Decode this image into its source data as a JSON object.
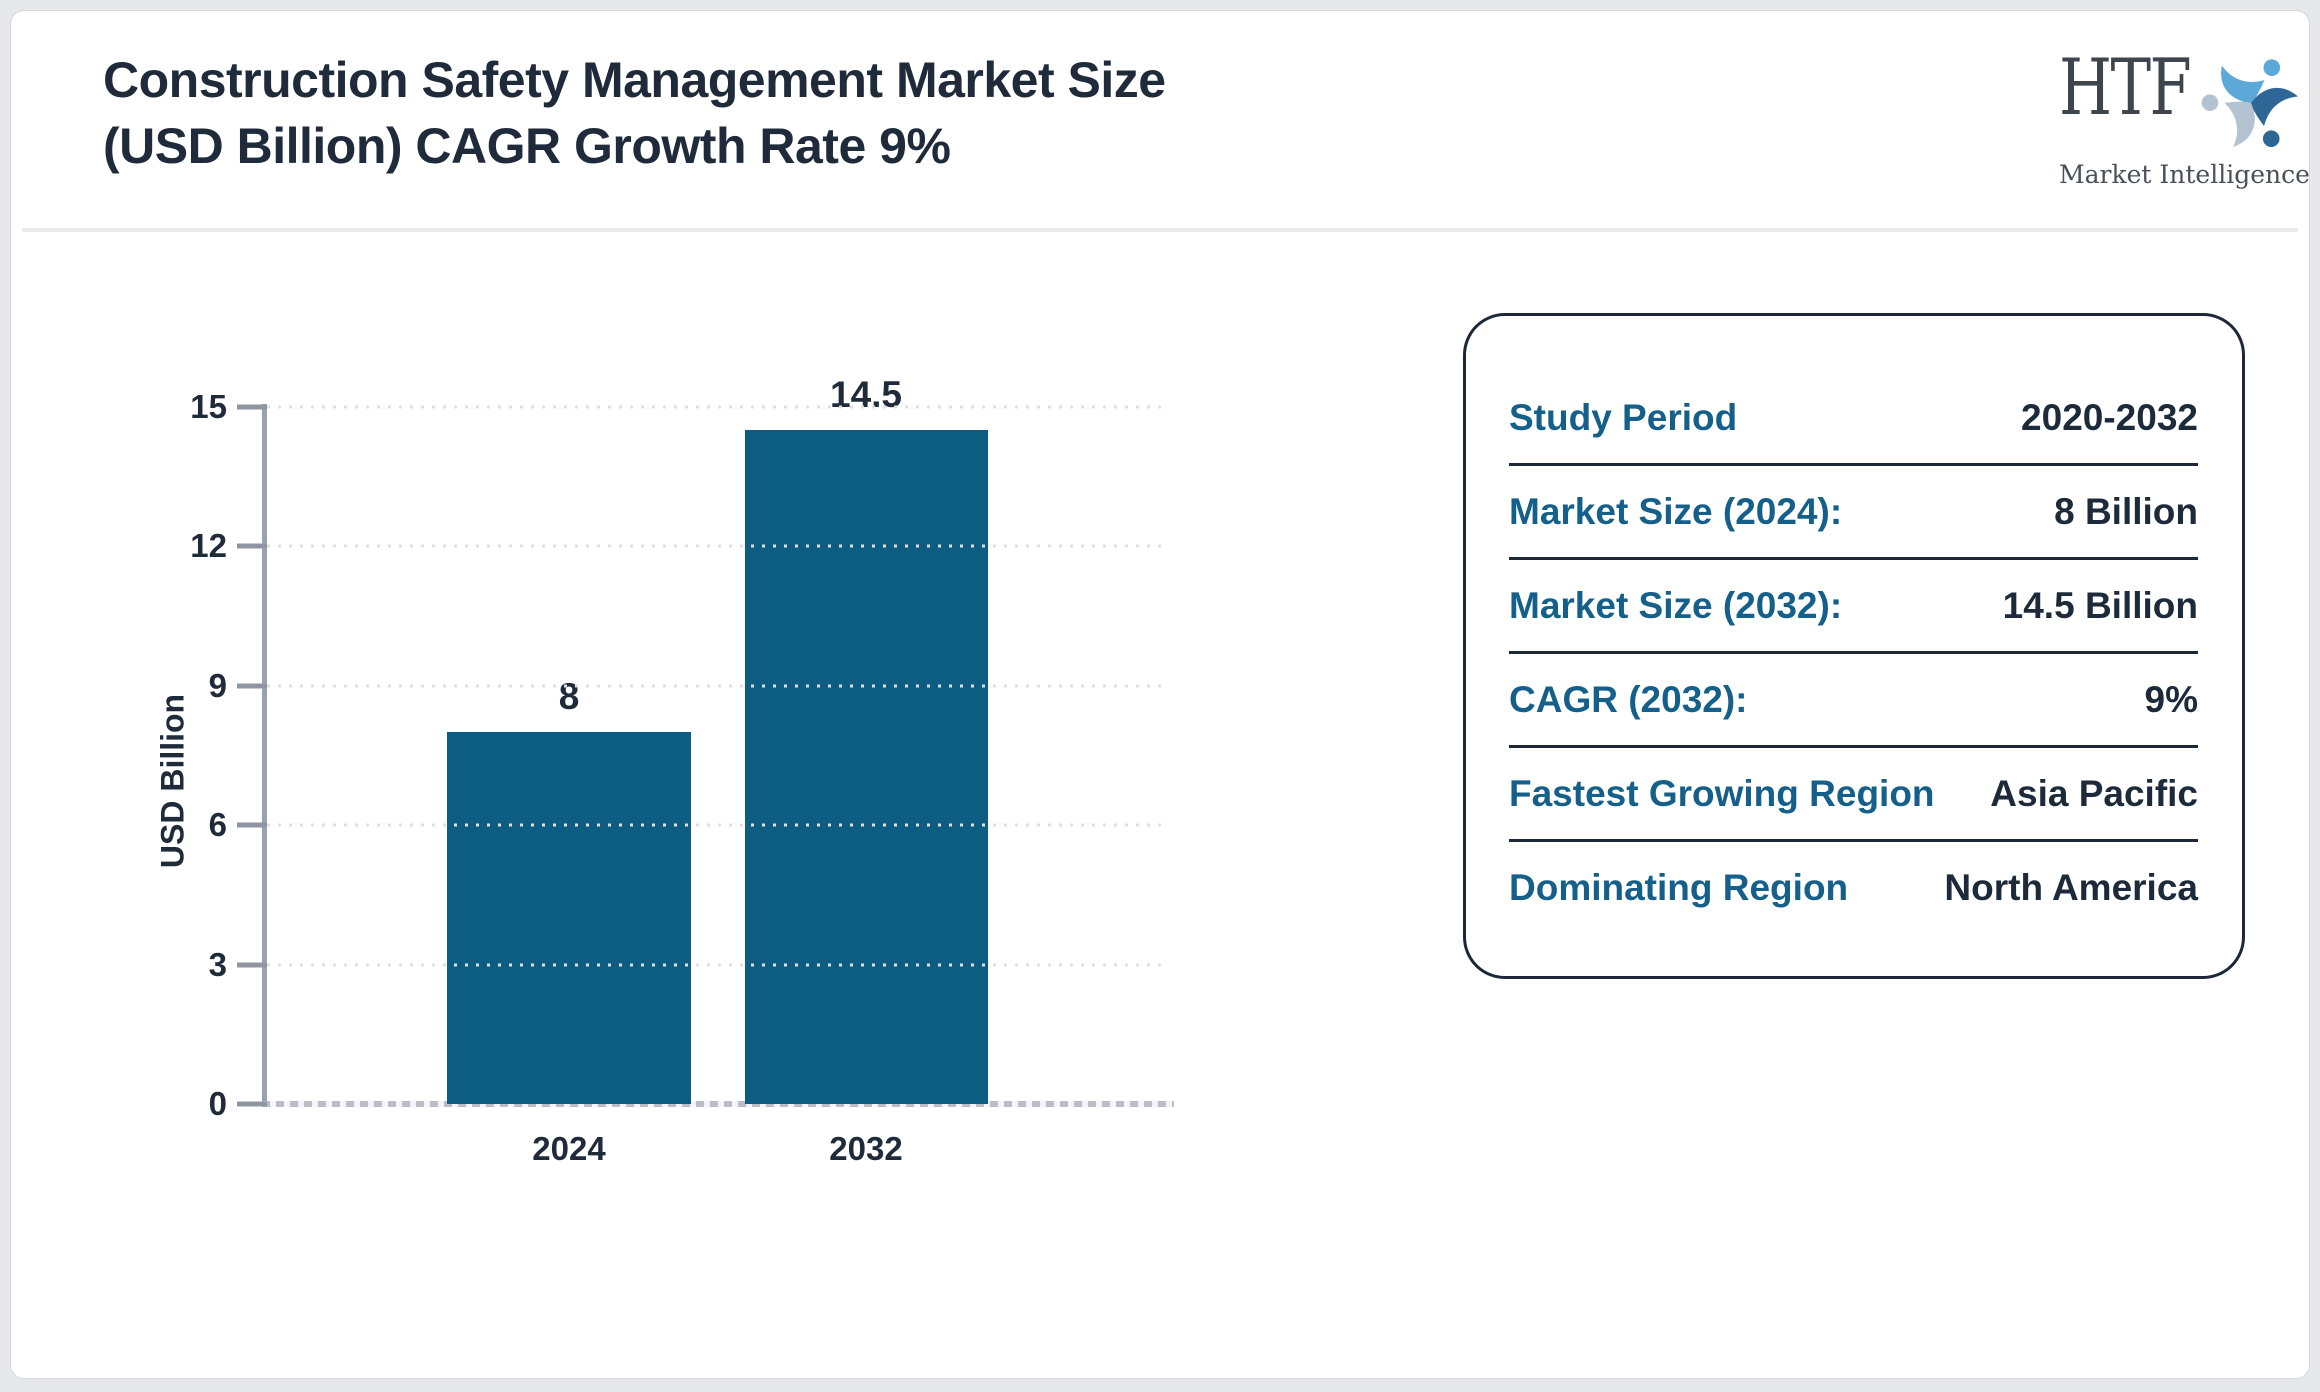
{
  "header": {
    "title_line1": "Construction Safety Management Market Size",
    "title_line2": "(USD Billion) CAGR Growth Rate 9%"
  },
  "logo": {
    "name": "HTF",
    "tagline": "Market Intelligence"
  },
  "chart_data": {
    "type": "bar",
    "title": "Construction Safety Management Market Size (USD Billion) CAGR Growth Rate 9%",
    "categories": [
      "2024",
      "2032"
    ],
    "values": [
      8,
      14.5
    ],
    "value_labels": [
      "8",
      "14.5"
    ],
    "xlabel": "",
    "ylabel": "USD Billion",
    "yticks": [
      0,
      3,
      6,
      9,
      12,
      15
    ],
    "ylim": [
      0,
      15
    ],
    "grid": true,
    "legend": false,
    "bar_color": "#0d5c82"
  },
  "info_panel": {
    "rows": [
      {
        "label": "Study Period",
        "value": "2020-2032"
      },
      {
        "label": "Market Size (2024):",
        "value": "8 Billion"
      },
      {
        "label": "Market Size (2032):",
        "value": "14.5 Billion"
      },
      {
        "label": "CAGR (2032):",
        "value": "9%"
      },
      {
        "label": "Fastest Growing Region",
        "value": "Asia Pacific"
      },
      {
        "label": "Dominating Region",
        "value": "North America"
      }
    ]
  },
  "colors": {
    "title": "#1f2b3a",
    "bar": "#0d5c82",
    "info_label": "#14608a",
    "info_value": "#1c2a39",
    "info_border": "#1c2836",
    "axis": "#9aa2ad",
    "page_background": "#e7e8ec"
  }
}
